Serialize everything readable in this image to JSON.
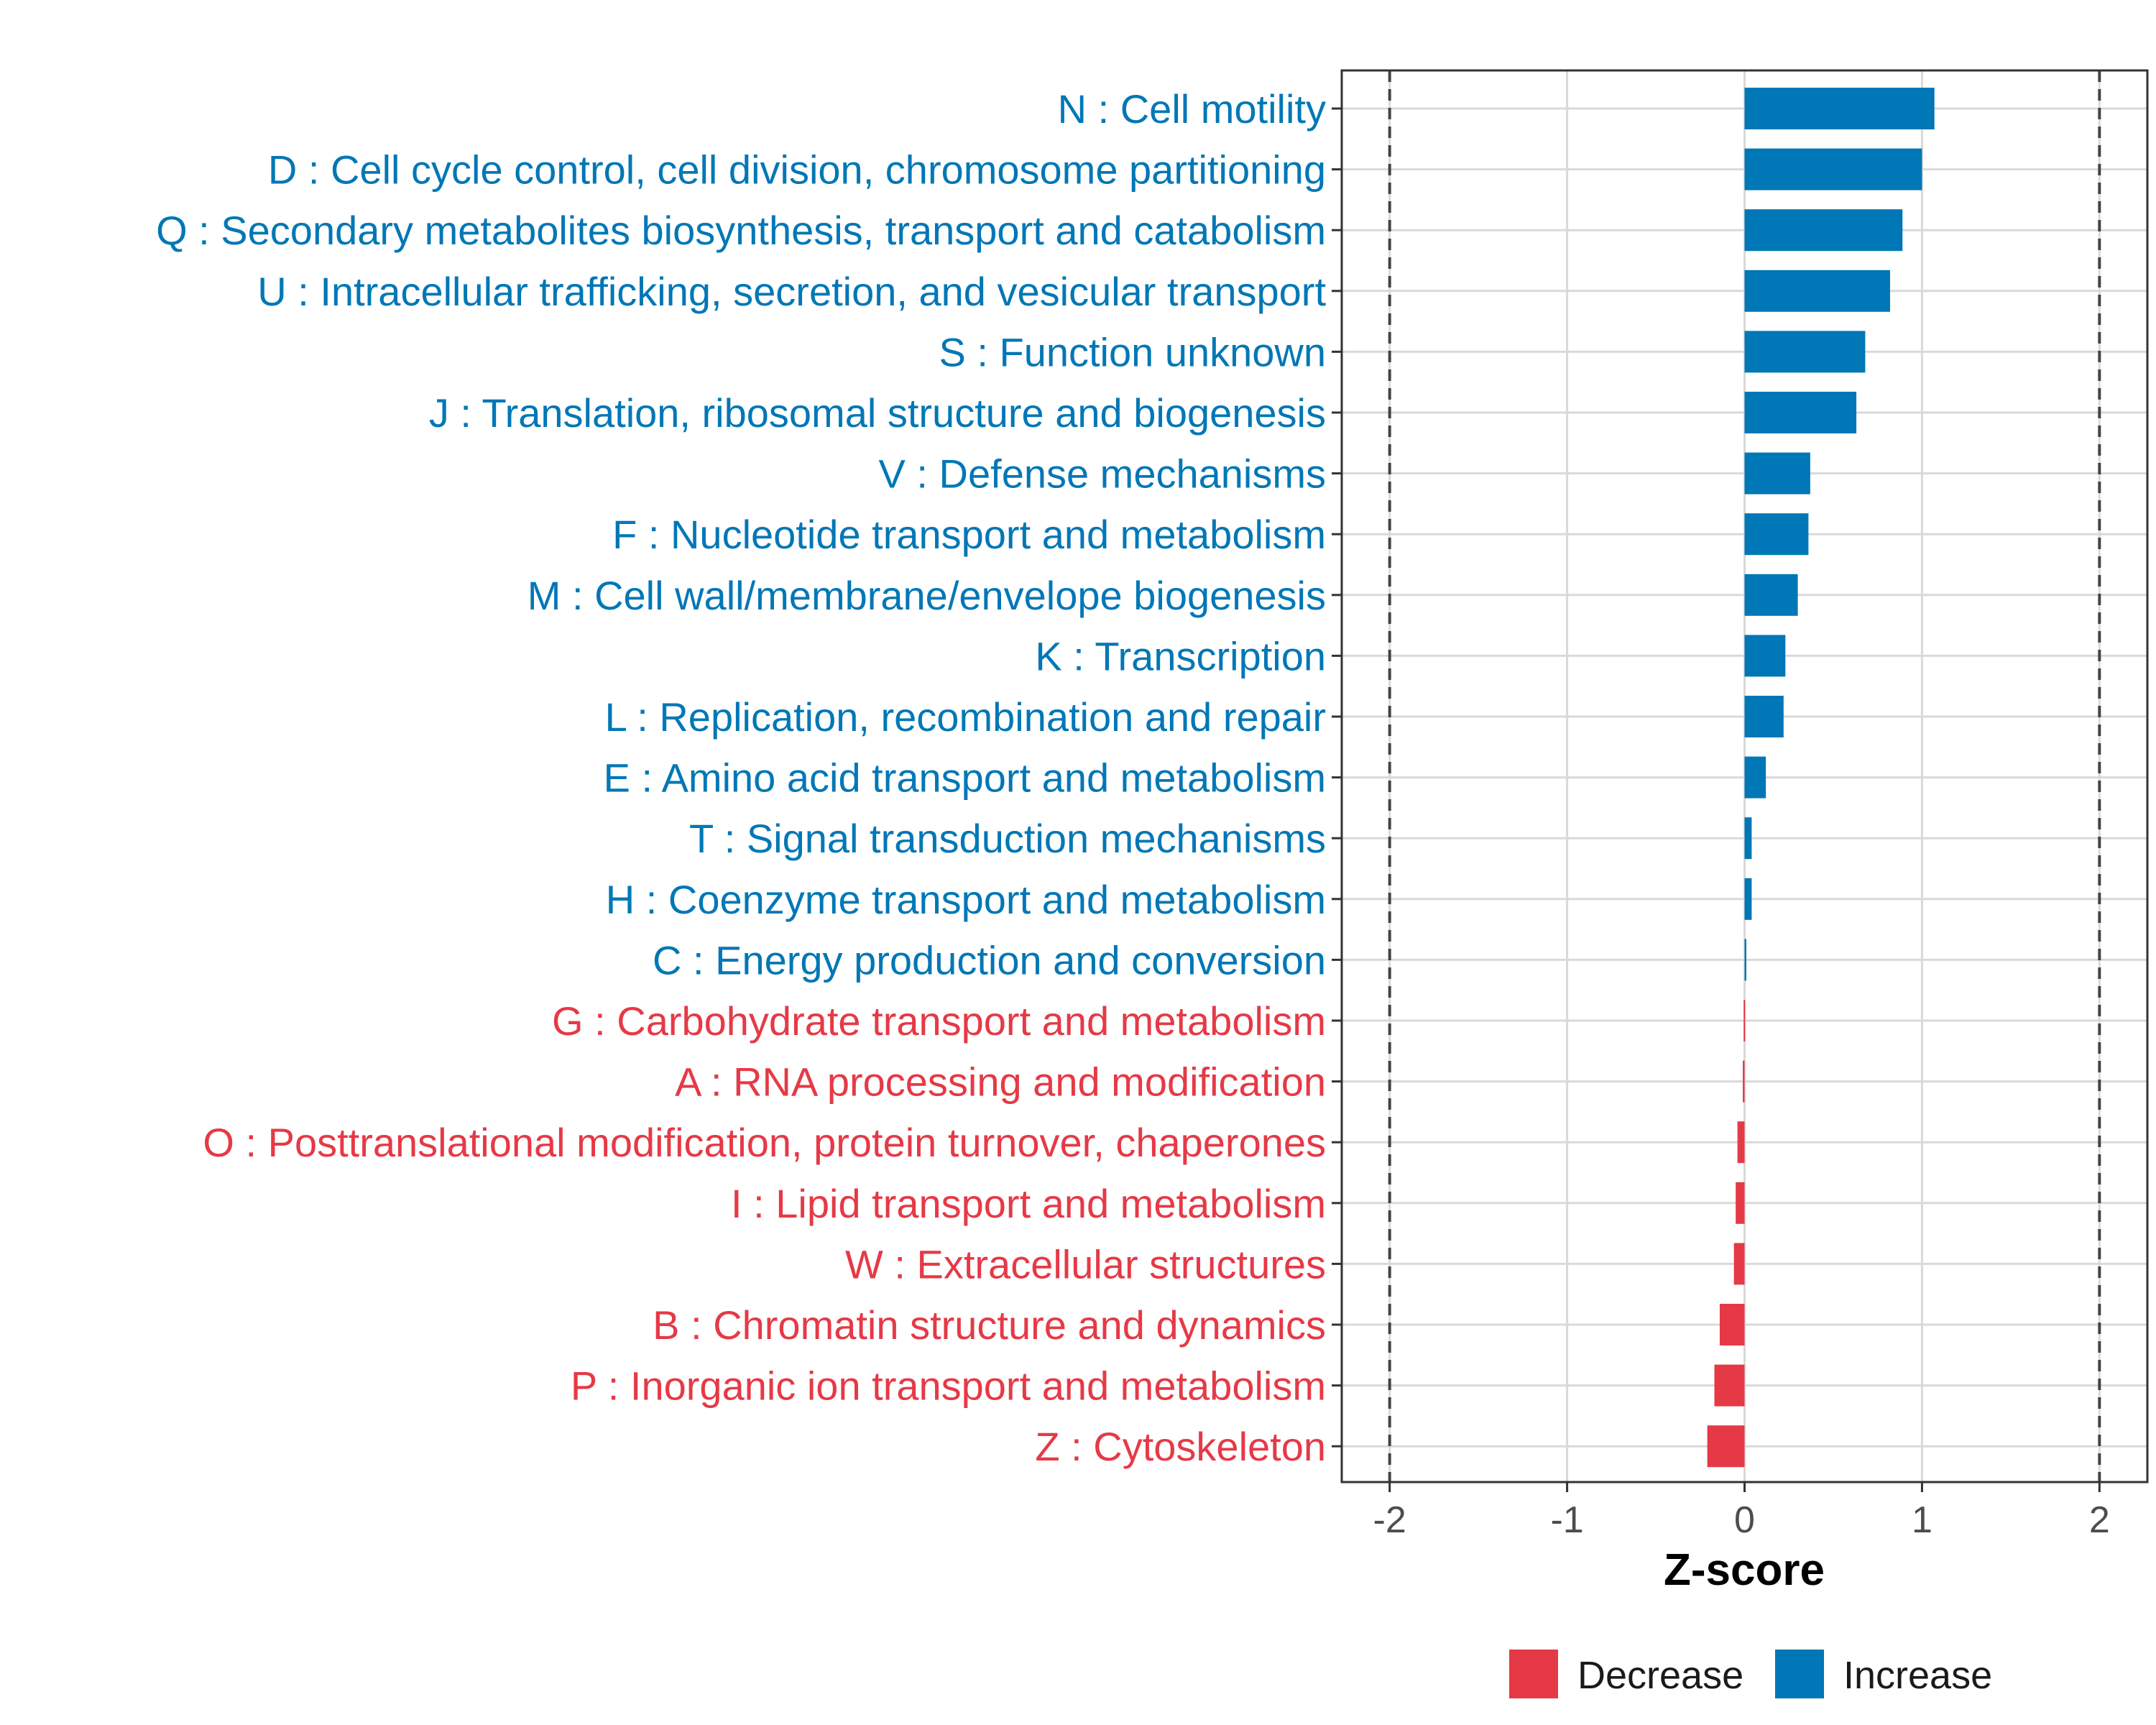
{
  "chart_data": {
    "type": "bar",
    "orientation": "horizontal",
    "xlabel": "Z-score",
    "ylabel": "",
    "xlim": [
      -2.27,
      2.27
    ],
    "xticks": [
      -2,
      -1,
      0,
      1,
      2
    ],
    "xtick_labels": [
      "-2",
      "-1",
      "0",
      "1",
      "2"
    ],
    "reference_lines": [
      -2,
      2
    ],
    "grid": true,
    "legend_position": "bottom",
    "colors": {
      "Decrease": "#e63946",
      "Increase": "#0077b6"
    },
    "legend": [
      {
        "key": "Decrease",
        "label": "Decrease"
      },
      {
        "key": "Increase",
        "label": "Increase"
      }
    ],
    "categories": [
      "N : Cell motility",
      "D : Cell cycle control, cell division, chromosome partitioning",
      "Q : Secondary metabolites biosynthesis, transport and catabolism",
      "U : Intracellular trafficking, secretion, and vesicular transport",
      "S : Function unknown",
      "J : Translation, ribosomal structure and biogenesis",
      "V : Defense mechanisms",
      "F : Nucleotide transport and metabolism",
      "M : Cell wall/membrane/envelope biogenesis",
      "K : Transcription",
      "L : Replication, recombination and repair",
      "E : Amino acid transport and metabolism",
      "T : Signal transduction mechanisms",
      "H : Coenzyme transport and metabolism",
      "C : Energy production and conversion",
      "G : Carbohydrate transport and metabolism",
      "A : RNA processing and modification",
      "O : Posttranslational modification, protein turnover, chaperones",
      "I : Lipid transport and metabolism",
      "W : Extracellular structures",
      "B : Chromatin structure and dynamics",
      "P : Inorganic ion transport and metabolism",
      "Z : Cytoskeleton"
    ],
    "values": [
      1.07,
      1.0,
      0.89,
      0.82,
      0.68,
      0.63,
      0.37,
      0.36,
      0.3,
      0.23,
      0.22,
      0.12,
      0.04,
      0.04,
      0.01,
      -0.005,
      -0.01,
      -0.04,
      -0.05,
      -0.06,
      -0.14,
      -0.17,
      -0.21
    ],
    "groups": [
      "Increase",
      "Increase",
      "Increase",
      "Increase",
      "Increase",
      "Increase",
      "Increase",
      "Increase",
      "Increase",
      "Increase",
      "Increase",
      "Increase",
      "Increase",
      "Increase",
      "Increase",
      "Decrease",
      "Decrease",
      "Decrease",
      "Decrease",
      "Decrease",
      "Decrease",
      "Decrease",
      "Decrease"
    ]
  }
}
